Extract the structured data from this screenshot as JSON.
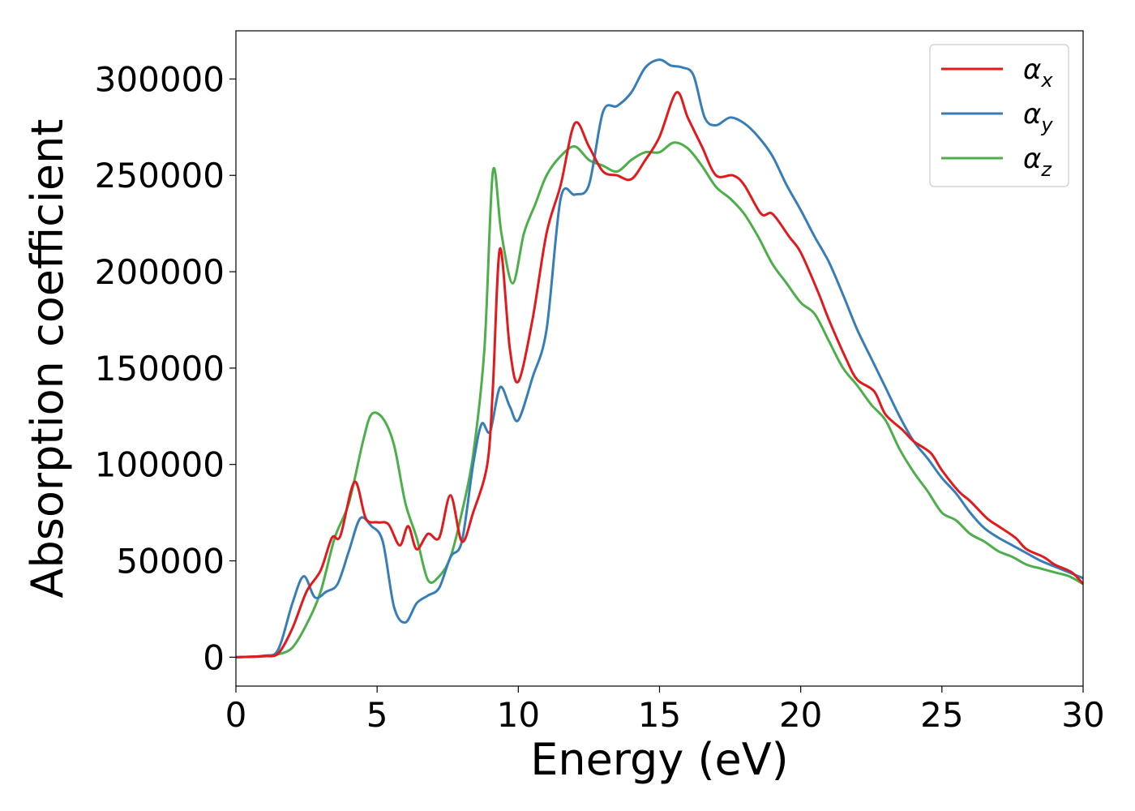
{
  "chart_data": {
    "type": "line",
    "title": "",
    "xlabel": "Energy (eV)",
    "ylabel": "Absorption coefficient",
    "xlim": [
      0,
      30
    ],
    "ylim": [
      -15000,
      325000
    ],
    "xticks": [
      0,
      5,
      10,
      15,
      20,
      25,
      30
    ],
    "yticks": [
      0,
      50000,
      100000,
      150000,
      200000,
      250000,
      300000
    ],
    "xtick_labels": [
      "0",
      "5",
      "10",
      "15",
      "20",
      "25",
      "30"
    ],
    "ytick_labels": [
      "0",
      "50000",
      "100000",
      "150000",
      "200000",
      "250000",
      "300000"
    ],
    "grid": false,
    "legend_position": "top-right",
    "series": [
      {
        "name": "αx",
        "legend_main": "α",
        "legend_sub": "x",
        "color": "#e31a1c",
        "x": [
          0,
          1,
          1.5,
          2,
          2.5,
          3,
          3.4,
          3.7,
          4.2,
          4.6,
          5,
          5.4,
          5.8,
          6.1,
          6.4,
          6.8,
          7.2,
          7.6,
          8,
          8.4,
          8.9,
          9.1,
          9.35,
          9.7,
          10,
          10.5,
          11,
          11.5,
          12,
          12.5,
          13,
          13.5,
          14,
          14.5,
          15,
          15.6,
          16,
          16.5,
          17,
          17.6,
          18,
          18.6,
          19,
          19.6,
          20,
          20.6,
          21,
          21.6,
          22,
          22.6,
          23,
          23.6,
          24,
          24.6,
          25,
          25.6,
          26,
          26.6,
          27,
          27.6,
          28,
          28.6,
          29,
          29.6,
          30
        ],
        "y": [
          0,
          500,
          2000,
          15000,
          34000,
          45000,
          62000,
          63000,
          91000,
          72000,
          70000,
          69000,
          58000,
          68000,
          56000,
          64000,
          62000,
          84000,
          60000,
          75000,
          100000,
          140000,
          212000,
          160000,
          143000,
          175000,
          220000,
          245000,
          277000,
          265000,
          252000,
          250000,
          248000,
          258000,
          270000,
          293000,
          280000,
          265000,
          250000,
          250000,
          245000,
          230000,
          230000,
          218000,
          210000,
          190000,
          175000,
          155000,
          144000,
          138000,
          126000,
          118000,
          112000,
          106000,
          97000,
          86000,
          81000,
          72000,
          68000,
          62000,
          56000,
          52000,
          48000,
          44000,
          38000
        ]
      },
      {
        "name": "αy",
        "legend_main": "α",
        "legend_sub": "y",
        "color": "#377eb8",
        "x": [
          0,
          1,
          1.5,
          2,
          2.4,
          2.8,
          3.2,
          3.6,
          4,
          4.4,
          4.8,
          5.2,
          5.6,
          6,
          6.4,
          6.8,
          7.2,
          7.6,
          8,
          8.4,
          8.7,
          9,
          9.35,
          9.7,
          10,
          10.5,
          11,
          11.5,
          12,
          12.5,
          13,
          13.5,
          14,
          14.5,
          15,
          15.4,
          15.8,
          16.2,
          16.6,
          17,
          17.5,
          18,
          18.5,
          19,
          19.5,
          20,
          20.5,
          21,
          21.5,
          22,
          22.5,
          23,
          23.5,
          24,
          24.5,
          25,
          25.5,
          26,
          26.5,
          27,
          27.5,
          28,
          28.5,
          29,
          29.5,
          30
        ],
        "y": [
          0,
          800,
          4000,
          28000,
          42000,
          31000,
          34000,
          38000,
          55000,
          72000,
          68000,
          60000,
          26000,
          18000,
          28000,
          32000,
          36000,
          52000,
          60000,
          100000,
          121000,
          117000,
          140000,
          130000,
          123000,
          145000,
          170000,
          238000,
          240000,
          245000,
          283000,
          286000,
          293000,
          306000,
          310000,
          307000,
          306000,
          302000,
          280000,
          276000,
          280000,
          277000,
          270000,
          260000,
          245000,
          232000,
          218000,
          205000,
          188000,
          170000,
          155000,
          140000,
          125000,
          112000,
          103000,
          93000,
          85000,
          75000,
          67000,
          62000,
          58000,
          54000,
          50000,
          47000,
          44000,
          41000
        ]
      },
      {
        "name": "αz",
        "legend_main": "α",
        "legend_sub": "z",
        "color": "#4daf4a",
        "x": [
          0,
          1,
          1.5,
          2,
          2.5,
          3,
          3.5,
          4,
          4.5,
          4.8,
          5.2,
          5.6,
          6,
          6.4,
          6.8,
          7.2,
          7.6,
          8,
          8.4,
          8.8,
          9.1,
          9.4,
          9.8,
          10.2,
          10.6,
          11,
          11.5,
          12,
          12.5,
          13,
          13.5,
          14,
          14.5,
          15,
          15.5,
          16,
          16.5,
          17,
          17.5,
          18,
          18.5,
          19,
          19.5,
          20,
          20.5,
          21,
          21.5,
          22,
          22.5,
          23,
          23.5,
          24,
          24.5,
          25,
          25.5,
          26,
          26.5,
          27,
          27.5,
          28,
          28.5,
          29,
          29.5,
          30
        ],
        "y": [
          0,
          500,
          1500,
          5000,
          17000,
          34000,
          62000,
          80000,
          112000,
          126000,
          124000,
          110000,
          80000,
          62000,
          40000,
          42000,
          52000,
          75000,
          105000,
          160000,
          252000,
          220000,
          194000,
          220000,
          235000,
          250000,
          260000,
          265000,
          258000,
          255000,
          252000,
          258000,
          262000,
          262000,
          267000,
          264000,
          255000,
          244000,
          238000,
          230000,
          218000,
          204000,
          194000,
          184000,
          178000,
          164000,
          150000,
          141000,
          131000,
          123000,
          108000,
          96000,
          86000,
          75000,
          71000,
          64000,
          60000,
          55000,
          52000,
          48000,
          46000,
          44000,
          42000,
          38000
        ]
      }
    ]
  }
}
